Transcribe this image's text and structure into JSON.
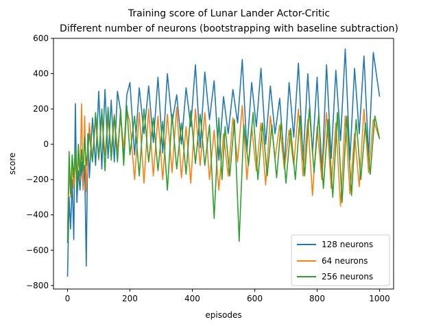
{
  "chart_data": {
    "type": "line",
    "title_line1": "Training score of Lunar Lander Actor-Critic",
    "title_line2": "Different number of neurons (bootstrapping with baseline subtraction)",
    "xlabel": "episodes",
    "ylabel": "score",
    "xlim": [
      -45,
      1045
    ],
    "ylim": [
      -820,
      600
    ],
    "x_ticks": [
      0,
      200,
      400,
      600,
      800,
      1000
    ],
    "x_tick_labels": [
      "0",
      "200",
      "400",
      "600",
      "800",
      "1000"
    ],
    "y_ticks": [
      -800,
      -600,
      -400,
      -200,
      0,
      200,
      400,
      600
    ],
    "y_tick_labels": [
      "−800",
      "−600",
      "−400",
      "−200",
      "0",
      "200",
      "400",
      "600"
    ],
    "grid": false,
    "legend_position": "lower-right",
    "series": [
      {
        "name": "128 neurons",
        "color": "#1f77b4",
        "x": [
          0,
          5,
          10,
          15,
          20,
          25,
          30,
          35,
          40,
          45,
          50,
          55,
          60,
          65,
          70,
          80,
          90,
          100,
          110,
          120,
          130,
          140,
          150,
          160,
          170,
          180,
          190,
          200,
          215,
          230,
          245,
          260,
          275,
          290,
          305,
          320,
          335,
          350,
          365,
          380,
          395,
          410,
          425,
          440,
          455,
          470,
          485,
          500,
          515,
          530,
          545,
          560,
          575,
          590,
          605,
          620,
          635,
          650,
          665,
          680,
          695,
          710,
          725,
          740,
          755,
          770,
          785,
          800,
          815,
          830,
          845,
          860,
          875,
          890,
          905,
          920,
          935,
          950,
          965,
          980,
          1000
        ],
        "y": [
          -750,
          -300,
          -480,
          -200,
          -540,
          230,
          -330,
          -150,
          -260,
          -100,
          -250,
          -120,
          -690,
          60,
          -190,
          150,
          -120,
          300,
          -140,
          310,
          -80,
          250,
          -100,
          300,
          190,
          -80,
          280,
          350,
          -60,
          320,
          60,
          330,
          10,
          380,
          -50,
          400,
          120,
          280,
          0,
          320,
          100,
          450,
          -20,
          410,
          140,
          360,
          -90,
          270,
          60,
          310,
          120,
          480,
          -40,
          350,
          100,
          430,
          0,
          330,
          60,
          260,
          -120,
          350,
          40,
          460,
          -90,
          400,
          -50,
          380,
          -200,
          450,
          -80,
          420,
          20,
          540,
          -90,
          430,
          60,
          500,
          -70,
          520,
          270
        ]
      },
      {
        "name": "64 neurons",
        "color": "#ff7f0e",
        "x": [
          0,
          5,
          10,
          15,
          20,
          25,
          30,
          35,
          40,
          45,
          50,
          55,
          60,
          70,
          80,
          90,
          100,
          110,
          120,
          130,
          140,
          150,
          160,
          170,
          180,
          190,
          200,
          215,
          230,
          245,
          260,
          275,
          290,
          305,
          320,
          335,
          350,
          365,
          380,
          395,
          410,
          425,
          440,
          455,
          470,
          485,
          500,
          515,
          530,
          545,
          560,
          575,
          590,
          605,
          620,
          635,
          650,
          665,
          680,
          695,
          710,
          725,
          740,
          755,
          770,
          785,
          800,
          815,
          830,
          845,
          860,
          875,
          890,
          905,
          920,
          935,
          950,
          965,
          980,
          1000
        ],
        "y": [
          -480,
          -150,
          -300,
          -120,
          -250,
          -80,
          -230,
          -60,
          -200,
          230,
          -260,
          160,
          -270,
          120,
          -80,
          140,
          -90,
          160,
          -60,
          140,
          -40,
          170,
          -40,
          150,
          -20,
          200,
          120,
          -200,
          180,
          -220,
          200,
          -180,
          160,
          -200,
          170,
          -160,
          210,
          -190,
          100,
          -220,
          200,
          -120,
          180,
          -200,
          80,
          -260,
          60,
          -180,
          150,
          -100,
          220,
          -200,
          100,
          -150,
          120,
          -230,
          160,
          -80,
          110,
          -140,
          80,
          -120,
          200,
          -180,
          140,
          -290,
          100,
          -200,
          180,
          -250,
          120,
          -350,
          160,
          -280,
          60,
          -240,
          200,
          -160,
          140,
          30
        ]
      },
      {
        "name": "256 neurons",
        "color": "#2ca02c",
        "x": [
          0,
          5,
          10,
          15,
          20,
          25,
          30,
          35,
          40,
          45,
          50,
          55,
          60,
          70,
          80,
          90,
          100,
          110,
          120,
          130,
          140,
          150,
          160,
          170,
          180,
          190,
          200,
          215,
          230,
          245,
          260,
          275,
          290,
          305,
          320,
          335,
          350,
          365,
          380,
          395,
          410,
          425,
          440,
          455,
          470,
          485,
          495,
          505,
          520,
          535,
          550,
          565,
          580,
          595,
          610,
          625,
          640,
          655,
          670,
          685,
          700,
          715,
          730,
          745,
          760,
          775,
          790,
          805,
          820,
          835,
          850,
          865,
          880,
          895,
          910,
          925,
          940,
          955,
          970,
          985,
          1000
        ],
        "y": [
          -560,
          -40,
          -280,
          -60,
          -190,
          -20,
          -250,
          0,
          -180,
          -30,
          -150,
          40,
          -120,
          60,
          -100,
          180,
          -80,
          200,
          -150,
          210,
          -90,
          160,
          -100,
          200,
          -120,
          220,
          -60,
          160,
          -180,
          200,
          -100,
          150,
          -150,
          130,
          -260,
          170,
          -140,
          120,
          -170,
          190,
          -110,
          170,
          -120,
          110,
          -420,
          150,
          -200,
          100,
          -180,
          140,
          -550,
          110,
          -120,
          180,
          -200,
          120,
          -180,
          110,
          -190,
          130,
          -220,
          90,
          -200,
          160,
          -180,
          200,
          -160,
          170,
          -250,
          140,
          -300,
          180,
          -330,
          160,
          -290,
          140,
          -200,
          120,
          -170,
          160,
          30
        ]
      }
    ]
  }
}
